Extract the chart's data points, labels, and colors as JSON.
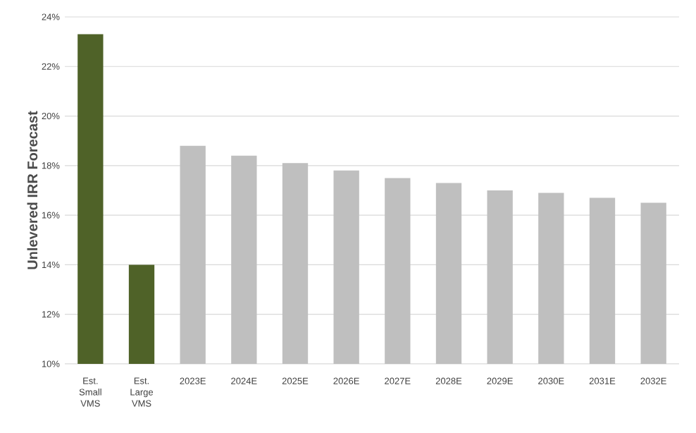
{
  "chart_data": {
    "type": "bar",
    "ylabel": "Unlevered IRR Forecast",
    "categories": [
      "Est. Small VMS",
      "Est. Large VMS",
      "2023E",
      "2024E",
      "2025E",
      "2026E",
      "2027E",
      "2028E",
      "2029E",
      "2030E",
      "2031E",
      "2032E"
    ],
    "values": [
      23.3,
      14.0,
      18.8,
      18.4,
      18.1,
      17.8,
      17.5,
      17.3,
      17.0,
      16.9,
      16.7,
      16.5
    ],
    "colors": [
      "#4f6228",
      "#4f6228",
      "#bfbfbf",
      "#bfbfbf",
      "#bfbfbf",
      "#bfbfbf",
      "#bfbfbf",
      "#bfbfbf",
      "#bfbfbf",
      "#bfbfbf",
      "#bfbfbf",
      "#bfbfbf"
    ],
    "ylim": [
      10,
      24
    ],
    "yticks": [
      {
        "value": 10,
        "label": "10%"
      },
      {
        "value": 12,
        "label": "12%"
      },
      {
        "value": 14,
        "label": "14%"
      },
      {
        "value": 16,
        "label": "16%"
      },
      {
        "value": 18,
        "label": "18%"
      },
      {
        "value": 20,
        "label": "20%"
      },
      {
        "value": 22,
        "label": "22%"
      },
      {
        "value": 24,
        "label": "24%"
      }
    ],
    "grid": "y"
  }
}
